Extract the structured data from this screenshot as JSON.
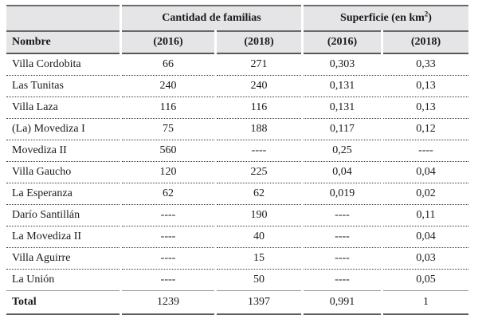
{
  "table": {
    "group_headers": {
      "families": "Cantidad de familias",
      "surface_prefix": "Superficie (en km",
      "surface_sup": "2",
      "surface_suffix": ")"
    },
    "column_headers": {
      "name": "Nombre",
      "families_2016": "(2016)",
      "families_2018": "(2018)",
      "surface_2016": "(2016)",
      "surface_2018": "(2018)"
    },
    "rows": [
      {
        "name": "Villa Cordobita",
        "values": [
          "66",
          "271",
          "0,303",
          "0,33"
        ]
      },
      {
        "name": "Las Tunitas",
        "values": [
          "240",
          "240",
          "0,131",
          "0,13"
        ]
      },
      {
        "name": "Villa Laza",
        "values": [
          "116",
          "116",
          "0,131",
          "0,13"
        ]
      },
      {
        "name": "(La) Movediza I",
        "values": [
          "75",
          "188",
          "0,117",
          "0,12"
        ]
      },
      {
        "name": "Movediza II",
        "values": [
          "560",
          "----",
          "0,25",
          "----"
        ]
      },
      {
        "name": "Villa Gaucho",
        "values": [
          "120",
          "225",
          "0,04",
          "0,04"
        ]
      },
      {
        "name": "La Esperanza",
        "values": [
          "62",
          "62",
          "0,019",
          "0,02"
        ]
      },
      {
        "name": "Darío Santillán",
        "values": [
          "----",
          "190",
          "----",
          "0,11"
        ]
      },
      {
        "name": "La Movediza II",
        "values": [
          "----",
          "40",
          "----",
          "0,04"
        ]
      },
      {
        "name": "Villa Aguirre",
        "values": [
          "----",
          "15",
          "----",
          "0,03"
        ]
      },
      {
        "name": "La Unión",
        "values": [
          "----",
          "50",
          "----",
          "0,05"
        ]
      }
    ],
    "total_row": {
      "name": "Total",
      "values": [
        "1239",
        "1397",
        "0,991",
        "1"
      ]
    },
    "colors": {
      "header_bg": "#e5e5e7",
      "border_dark": "#6a6a6a",
      "border_light": "#8f8f8f",
      "text": "#1a1a1a"
    }
  }
}
